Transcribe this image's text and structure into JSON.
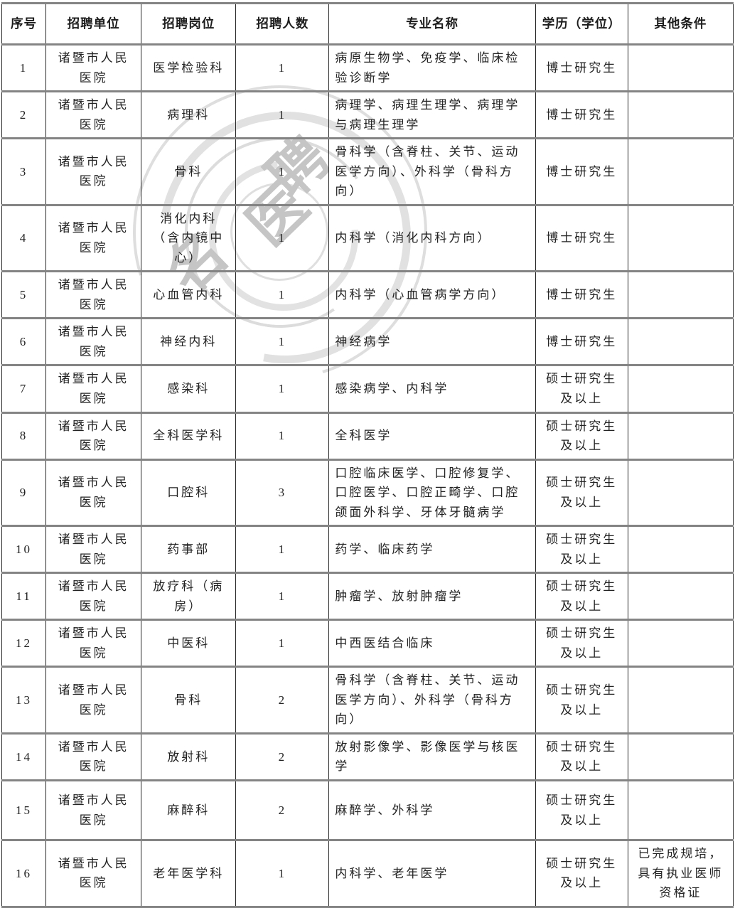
{
  "watermark": {
    "chars": [
      "名",
      "医",
      "聘"
    ]
  },
  "table": {
    "columns": [
      "序号",
      "招聘单位",
      "招聘岗位",
      "招聘人数",
      "专业名称",
      "学历（学位）",
      "其他条件"
    ],
    "rows": [
      {
        "no": "1",
        "unit": "诸暨市人民医院",
        "position": "医学检验科",
        "count": "1",
        "majors": "病原生物学、免疫学、临床检验诊断学",
        "education": "博士研究生",
        "other": ""
      },
      {
        "no": "2",
        "unit": "诸暨市人民医院",
        "position": "病理科",
        "count": "1",
        "majors": "病理学、病理生理学、病理学与病理生理学",
        "education": "博士研究生",
        "other": ""
      },
      {
        "no": "3",
        "unit": "诸暨市人民医院",
        "position": "骨科",
        "count": "1",
        "majors": "骨科学（含脊柱、关节、运动医学方向）、外科学（骨科方向）",
        "education": "博士研究生",
        "other": ""
      },
      {
        "no": "4",
        "unit": "诸暨市人民医院",
        "position": "消化内科（含内镜中心）",
        "count": "1",
        "majors": "内科学（消化内科方向）",
        "education": "博士研究生",
        "other": ""
      },
      {
        "no": "5",
        "unit": "诸暨市人民医院",
        "position": "心血管内科",
        "count": "1",
        "majors": "内科学（心血管病学方向）",
        "education": "博士研究生",
        "other": ""
      },
      {
        "no": "6",
        "unit": "诸暨市人民医院",
        "position": "神经内科",
        "count": "1",
        "majors": "神经病学",
        "education": "博士研究生",
        "other": ""
      },
      {
        "no": "7",
        "unit": "诸暨市人民医院",
        "position": "感染科",
        "count": "1",
        "majors": "感染病学、内科学",
        "education": "硕士研究生及以上",
        "other": ""
      },
      {
        "no": "8",
        "unit": "诸暨市人民医院",
        "position": "全科医学科",
        "count": "1",
        "majors": "全科医学",
        "education": "硕士研究生及以上",
        "other": ""
      },
      {
        "no": "9",
        "unit": "诸暨市人民医院",
        "position": "口腔科",
        "count": "3",
        "majors": "口腔临床医学、口腔修复学、口腔医学、口腔正畸学、口腔颌面外科学、牙体牙髓病学",
        "education": "硕士研究生及以上",
        "other": ""
      },
      {
        "no": "10",
        "unit": "诸暨市人民医院",
        "position": "药事部",
        "count": "1",
        "majors": "药学、临床药学",
        "education": "硕士研究生及以上",
        "other": ""
      },
      {
        "no": "11",
        "unit": "诸暨市人民医院",
        "position": "放疗科（病房）",
        "count": "1",
        "majors": "肿瘤学、放射肿瘤学",
        "education": "硕士研究生及以上",
        "other": ""
      },
      {
        "no": "12",
        "unit": "诸暨市人民医院",
        "position": "中医科",
        "count": "1",
        "majors": "中西医结合临床",
        "education": "硕士研究生及以上",
        "other": ""
      },
      {
        "no": "13",
        "unit": "诸暨市人民医院",
        "position": "骨科",
        "count": "2",
        "majors": "骨科学（含脊柱、关节、运动医学方向）、外科学（骨科方向）",
        "education": "硕士研究生及以上",
        "other": ""
      },
      {
        "no": "14",
        "unit": "诸暨市人民医院",
        "position": "放射科",
        "count": "2",
        "majors": "放射影像学、影像医学与核医学",
        "education": "硕士研究生及以上",
        "other": ""
      },
      {
        "no": "15",
        "unit": "诸暨市人民医院",
        "position": "麻醉科",
        "count": "2",
        "majors": "麻醉学、外科学",
        "education": "硕士研究生及以上",
        "other": ""
      },
      {
        "no": "16",
        "unit": "诸暨市人民医院",
        "position": "老年医学科",
        "count": "1",
        "majors": "内科学、老年医学",
        "education": "硕士研究生及以上",
        "other": "已完成规培，具有执业医师资格证"
      }
    ]
  }
}
